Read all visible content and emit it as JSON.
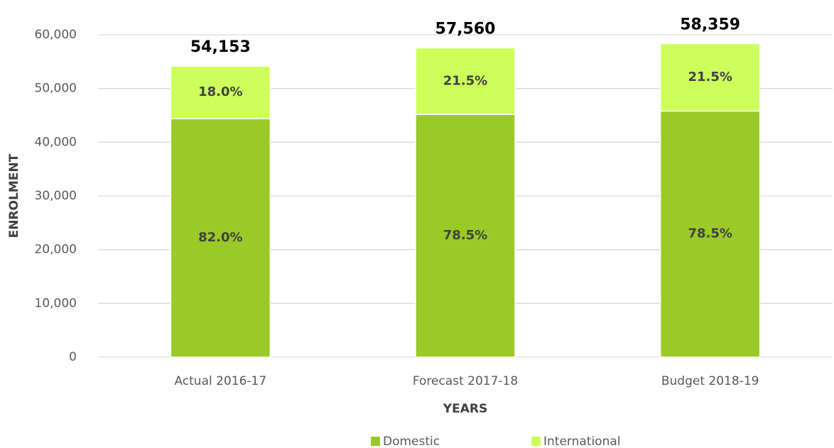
{
  "chart_data": {
    "type": "stacked_bar",
    "x_label": "YEARS",
    "y_label": "ENROLMENT",
    "categories": [
      "Actual 2016-17",
      "Forecast 2017-18",
      "Budget 2018-19"
    ],
    "series": [
      {
        "name": "Domestic",
        "color": "#9aca27",
        "values": [
          44405,
          45185,
          45812
        ],
        "value_labels": [
          "82.0%",
          "78.5%",
          "78.5%"
        ]
      },
      {
        "name": "International",
        "color": "#ccff5a",
        "values": [
          9748,
          12375,
          12547
        ],
        "value_labels": [
          "18.0%",
          "21.5%",
          "21.5%"
        ]
      }
    ],
    "total_labels": [
      "54,153",
      "57,560",
      "58,359"
    ],
    "ylim": [
      0,
      60000
    ],
    "yticks": [
      0,
      {
        "value": 10000,
        "label": "10,000"
      },
      {
        "value": 20000,
        "label": "20,000"
      },
      {
        "value": 30000,
        "label": "30,000"
      },
      {
        "value": 40000,
        "label": "40,000"
      },
      {
        "value": 50000,
        "label": "50,000"
      },
      {
        "value": 60000,
        "label": "60,000"
      }
    ],
    "grid": true,
    "legend": "bottom"
  }
}
